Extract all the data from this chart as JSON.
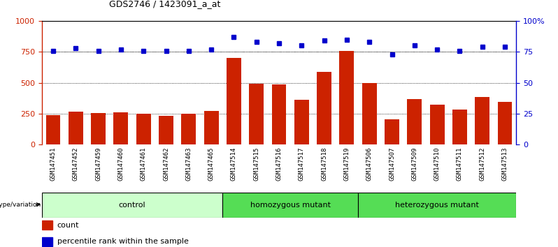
{
  "title": "GDS2746 / 1423091_a_at",
  "samples": [
    "GSM147451",
    "GSM147452",
    "GSM147459",
    "GSM147460",
    "GSM147461",
    "GSM147462",
    "GSM147463",
    "GSM147465",
    "GSM147514",
    "GSM147515",
    "GSM147516",
    "GSM147517",
    "GSM147518",
    "GSM147519",
    "GSM147506",
    "GSM147507",
    "GSM147509",
    "GSM147510",
    "GSM147511",
    "GSM147512",
    "GSM147513"
  ],
  "counts": [
    240,
    268,
    255,
    262,
    250,
    230,
    248,
    272,
    700,
    490,
    488,
    360,
    590,
    760,
    500,
    205,
    370,
    325,
    285,
    385,
    345
  ],
  "percentiles": [
    76,
    78,
    76,
    77,
    76,
    76,
    76,
    77,
    87,
    83,
    82,
    80,
    84,
    85,
    83,
    73,
    80,
    77,
    76,
    79,
    79
  ],
  "groups": [
    {
      "label": "control",
      "start": 0,
      "end": 8
    },
    {
      "label": "homozygous mutant",
      "start": 8,
      "end": 14
    },
    {
      "label": "heterozygous mutant",
      "start": 14,
      "end": 21
    }
  ],
  "ctrl_color": "#ccffcc",
  "mut_color": "#55dd55",
  "bar_color": "#cc2200",
  "dot_color": "#0000cc",
  "left_axis_color": "#cc2200",
  "right_axis_color": "#0000cc",
  "ylim_left": [
    0,
    1000
  ],
  "ylim_right": [
    0,
    100
  ],
  "yticks_left": [
    0,
    250,
    500,
    750,
    1000
  ],
  "yticks_right": [
    0,
    25,
    50,
    75,
    100
  ],
  "grid_values": [
    250,
    500,
    750
  ],
  "xtick_bg_color": "#cccccc"
}
